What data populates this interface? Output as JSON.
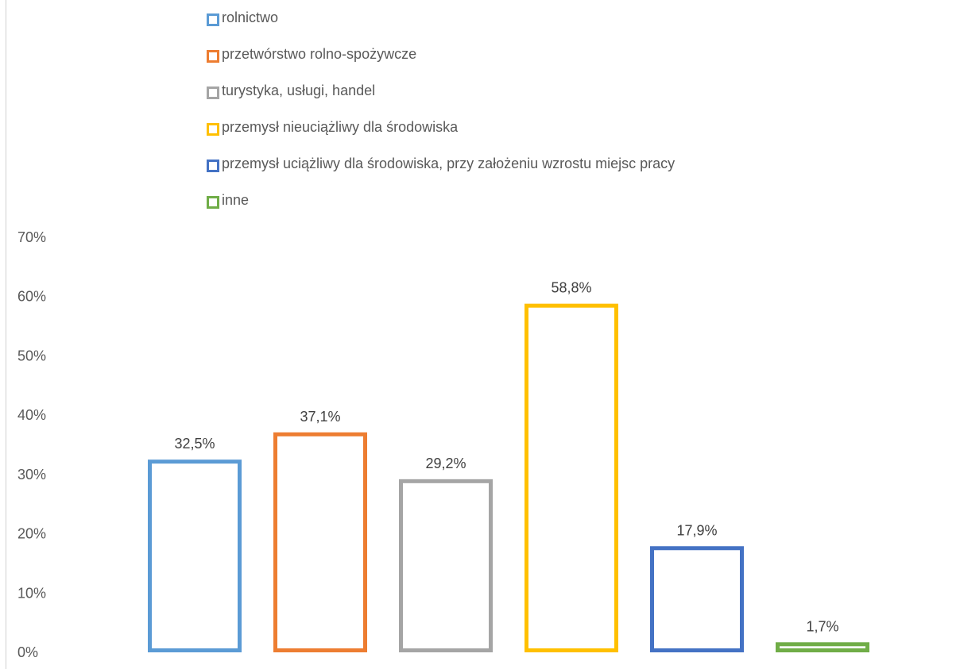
{
  "chart_data": {
    "type": "bar",
    "categories": [
      "rolnictwo",
      "przetwórstwo rolno-spożywcze",
      "turystyka, usługi, handel",
      "przemysł nieuciążliwy dla środowiska",
      "przemysł uciążliwy dla środowiska, przy założeniu wzrostu miejsc pracy",
      "inne"
    ],
    "values": [
      32.5,
      37.1,
      29.2,
      58.8,
      17.9,
      1.7
    ],
    "data_labels": [
      "32,5%",
      "37,1%",
      "29,2%",
      "58,8%",
      "17,9%",
      "1,7%"
    ],
    "colors": [
      "#5b9bd5",
      "#ed7d31",
      "#a5a5a5",
      "#ffc000",
      "#4472c4",
      "#70ad47"
    ],
    "ylim": [
      0,
      70
    ],
    "yticks": [
      "0%",
      "10%",
      "20%",
      "30%",
      "40%",
      "50%",
      "60%",
      "70%"
    ],
    "grid": false,
    "legend_position": "top",
    "bar_style": "outline"
  }
}
